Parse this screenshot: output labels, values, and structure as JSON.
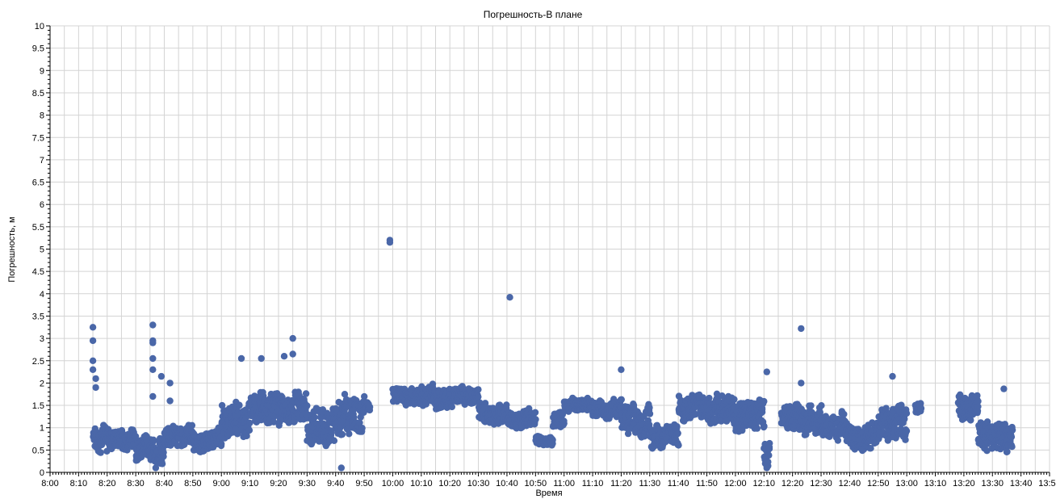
{
  "colors": {
    "series": "#4a67a8",
    "grid": "#d4d4d4",
    "axis": "#000000",
    "background": "#ffffff"
  },
  "chart_data": {
    "type": "scatter",
    "title": "Погрешность-В плане",
    "xlabel": "Время",
    "ylabel": "Погрешность, м",
    "grid": true,
    "legend": "none",
    "xlim_minutes": [
      480,
      830
    ],
    "ylim": [
      0,
      10
    ],
    "x_tick_labels": [
      "8:00",
      "8:10",
      "8:20",
      "8:30",
      "8:40",
      "8:50",
      "9:00",
      "9:10",
      "9:20",
      "9:30",
      "9:40",
      "9:50",
      "10:00",
      "10:10",
      "10:20",
      "10:30",
      "10:40",
      "10:50",
      "11:00",
      "11:10",
      "11:20",
      "11:30",
      "11:40",
      "11:50",
      "12:00",
      "12:10",
      "12:20",
      "12:30",
      "12:40",
      "12:50",
      "13:00",
      "13:10",
      "13:20",
      "13:30",
      "13:40",
      "13:50"
    ],
    "y_tick_labels": [
      "0",
      "0.5",
      "1",
      "1.5",
      "2",
      "2.5",
      "3",
      "3.5",
      "4",
      "4.5",
      "5",
      "5.5",
      "6",
      "6.5",
      "7",
      "7.5",
      "8",
      "8.5",
      "9",
      "9.5",
      "10"
    ],
    "segments": [
      {
        "start": "8:15",
        "end": "8:20",
        "level": 0.75,
        "spread": 0.3
      },
      {
        "start": "8:20",
        "end": "8:30",
        "level": 0.75,
        "spread": 0.25
      },
      {
        "start": "8:30",
        "end": "8:40",
        "level": 0.5,
        "spread": 0.3
      },
      {
        "start": "8:40",
        "end": "8:50",
        "level": 0.8,
        "spread": 0.25
      },
      {
        "start": "8:50",
        "end": "9:00",
        "level": 0.7,
        "spread": 0.25
      },
      {
        "start": "9:00",
        "end": "9:10",
        "level": 1.2,
        "spread": 0.4
      },
      {
        "start": "9:10",
        "end": "9:20",
        "level": 1.45,
        "spread": 0.35
      },
      {
        "start": "9:20",
        "end": "9:30",
        "level": 1.4,
        "spread": 0.35
      },
      {
        "start": "9:30",
        "end": "9:40",
        "level": 0.9,
        "spread": 0.45
      },
      {
        "start": "9:40",
        "end": "9:50",
        "level": 1.3,
        "spread": 0.45
      },
      {
        "start": "9:50",
        "end": "9:52",
        "level": 1.5,
        "spread": 0.1
      },
      {
        "start": "10:00",
        "end": "10:10",
        "level": 1.7,
        "spread": 0.2
      },
      {
        "start": "10:10",
        "end": "10:20",
        "level": 1.7,
        "spread": 0.25
      },
      {
        "start": "10:20",
        "end": "10:30",
        "level": 1.75,
        "spread": 0.2
      },
      {
        "start": "10:30",
        "end": "10:40",
        "level": 1.3,
        "spread": 0.25
      },
      {
        "start": "10:40",
        "end": "10:50",
        "level": 1.2,
        "spread": 0.2
      },
      {
        "start": "10:50",
        "end": "10:56",
        "level": 0.7,
        "spread": 0.1
      },
      {
        "start": "10:56",
        "end": "11:00",
        "level": 1.2,
        "spread": 0.2
      },
      {
        "start": "11:00",
        "end": "11:10",
        "level": 1.5,
        "spread": 0.15
      },
      {
        "start": "11:10",
        "end": "11:20",
        "level": 1.4,
        "spread": 0.2
      },
      {
        "start": "11:20",
        "end": "11:30",
        "level": 1.2,
        "spread": 0.35
      },
      {
        "start": "11:30",
        "end": "11:40",
        "level": 0.8,
        "spread": 0.25
      },
      {
        "start": "11:40",
        "end": "11:50",
        "level": 1.5,
        "spread": 0.3
      },
      {
        "start": "11:50",
        "end": "12:00",
        "level": 1.4,
        "spread": 0.35
      },
      {
        "start": "12:00",
        "end": "12:10",
        "level": 1.2,
        "spread": 0.4
      },
      {
        "start": "12:10",
        "end": "12:12",
        "level": 0.4,
        "spread": 0.3
      },
      {
        "start": "12:16",
        "end": "12:30",
        "level": 1.2,
        "spread": 0.3
      },
      {
        "start": "12:30",
        "end": "12:40",
        "level": 1.0,
        "spread": 0.3
      },
      {
        "start": "12:40",
        "end": "12:50",
        "level": 0.8,
        "spread": 0.3
      },
      {
        "start": "12:50",
        "end": "13:00",
        "level": 1.1,
        "spread": 0.4
      },
      {
        "start": "13:03",
        "end": "13:05",
        "level": 1.45,
        "spread": 0.15
      },
      {
        "start": "13:18",
        "end": "13:25",
        "level": 1.5,
        "spread": 0.3
      },
      {
        "start": "13:25",
        "end": "13:37",
        "level": 0.8,
        "spread": 0.35
      }
    ],
    "outliers": [
      {
        "x": "8:15",
        "y": 3.25
      },
      {
        "x": "8:15",
        "y": 2.95
      },
      {
        "x": "8:15",
        "y": 2.5
      },
      {
        "x": "8:15",
        "y": 2.3
      },
      {
        "x": "8:16",
        "y": 2.1
      },
      {
        "x": "8:16",
        "y": 1.9
      },
      {
        "x": "8:36",
        "y": 3.3
      },
      {
        "x": "8:36",
        "y": 2.95
      },
      {
        "x": "8:36",
        "y": 2.9
      },
      {
        "x": "8:36",
        "y": 2.55
      },
      {
        "x": "8:36",
        "y": 2.3
      },
      {
        "x": "8:36",
        "y": 1.7
      },
      {
        "x": "8:39",
        "y": 2.15
      },
      {
        "x": "8:42",
        "y": 2.0
      },
      {
        "x": "8:42",
        "y": 1.6
      },
      {
        "x": "9:07",
        "y": 2.55
      },
      {
        "x": "9:14",
        "y": 2.55
      },
      {
        "x": "9:22",
        "y": 2.6
      },
      {
        "x": "9:25",
        "y": 3.0
      },
      {
        "x": "9:25",
        "y": 2.65
      },
      {
        "x": "9:59",
        "y": 5.2
      },
      {
        "x": "9:59",
        "y": 5.15
      },
      {
        "x": "10:41",
        "y": 3.92
      },
      {
        "x": "11:20",
        "y": 2.3
      },
      {
        "x": "12:11",
        "y": 2.25
      },
      {
        "x": "12:23",
        "y": 3.22
      },
      {
        "x": "12:23",
        "y": 2.0
      },
      {
        "x": "13:34",
        "y": 1.87
      },
      {
        "x": "12:11",
        "y": 0.1
      },
      {
        "x": "12:55",
        "y": 2.15
      },
      {
        "x": "9:42",
        "y": 0.1
      },
      {
        "x": "8:37",
        "y": 0.1
      }
    ]
  }
}
